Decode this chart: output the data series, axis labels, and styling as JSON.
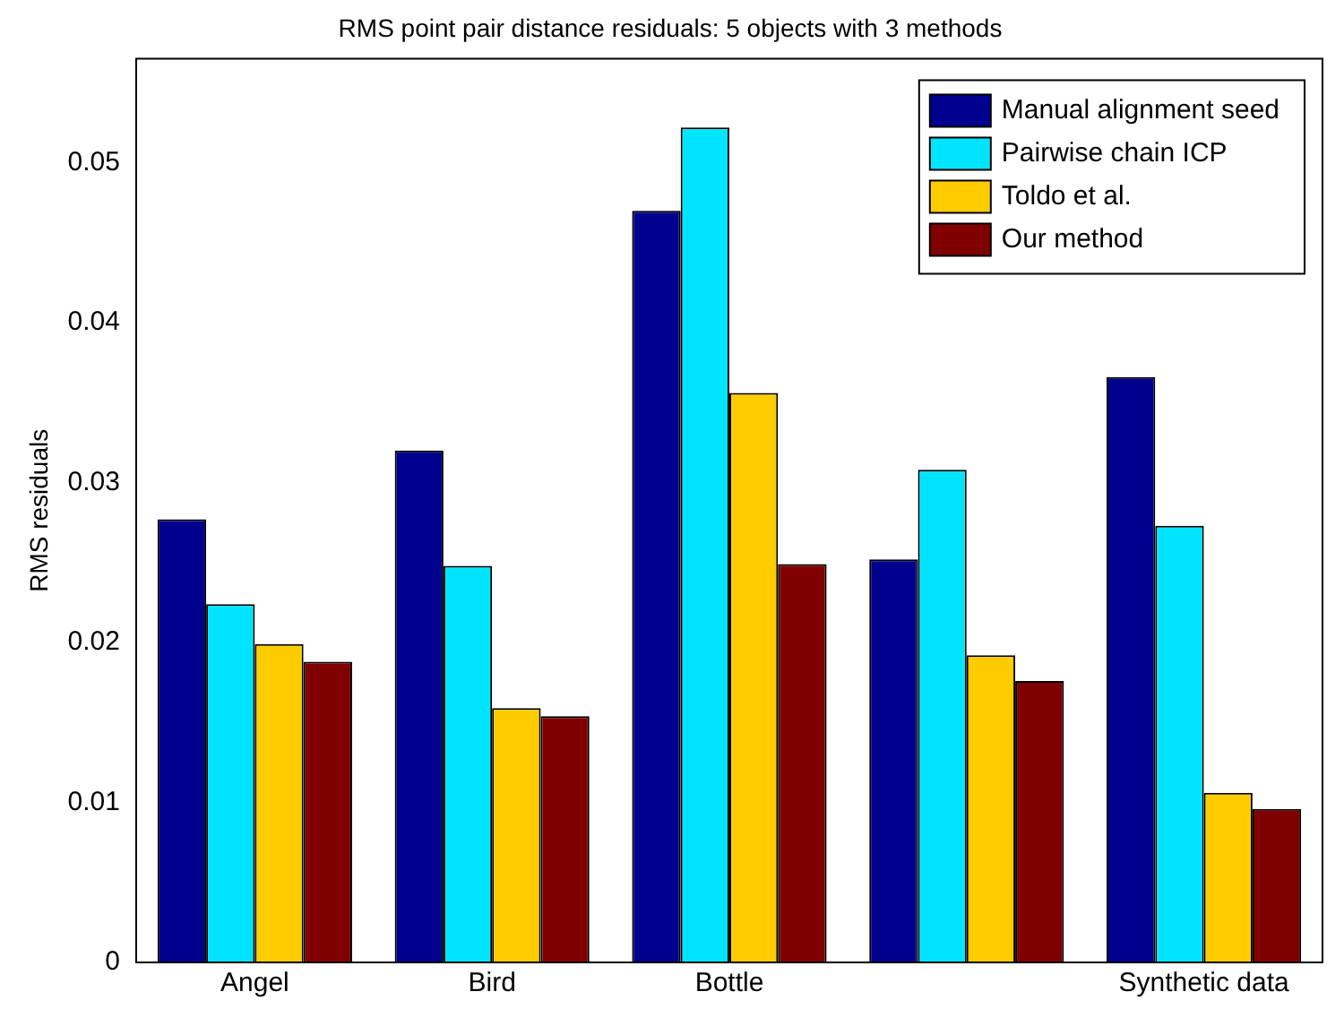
{
  "chart_data": {
    "type": "bar",
    "title": "RMS point pair distance residuals: 5 objects with 3 methods",
    "ylabel": "RMS residuals",
    "categories": [
      "Angel",
      "Bird",
      "Bottle",
      null,
      "Synthetic data"
    ],
    "series": [
      {
        "name": "Manual alignment seed",
        "color": "#00008f",
        "values": [
          0.0277,
          0.032,
          0.047,
          0.0252,
          0.0366
        ]
      },
      {
        "name": "Pairwise chain ICP",
        "color": "#00e5ff",
        "values": [
          0.0224,
          0.0248,
          0.0522,
          0.0308,
          0.0273
        ]
      },
      {
        "name": "Toldo et al.",
        "color": "#ffcc00",
        "values": [
          0.0199,
          0.0159,
          0.0356,
          0.0192,
          0.0106
        ]
      },
      {
        "name": "Our method",
        "color": "#800000",
        "values": [
          0.0188,
          0.0154,
          0.0249,
          0.0176,
          0.0096
        ]
      }
    ],
    "ylim": [
      0,
      0.0565
    ],
    "yticks": [
      0,
      0.01,
      0.02,
      0.03,
      0.04,
      0.05
    ],
    "grid": false,
    "legend": "top right"
  }
}
